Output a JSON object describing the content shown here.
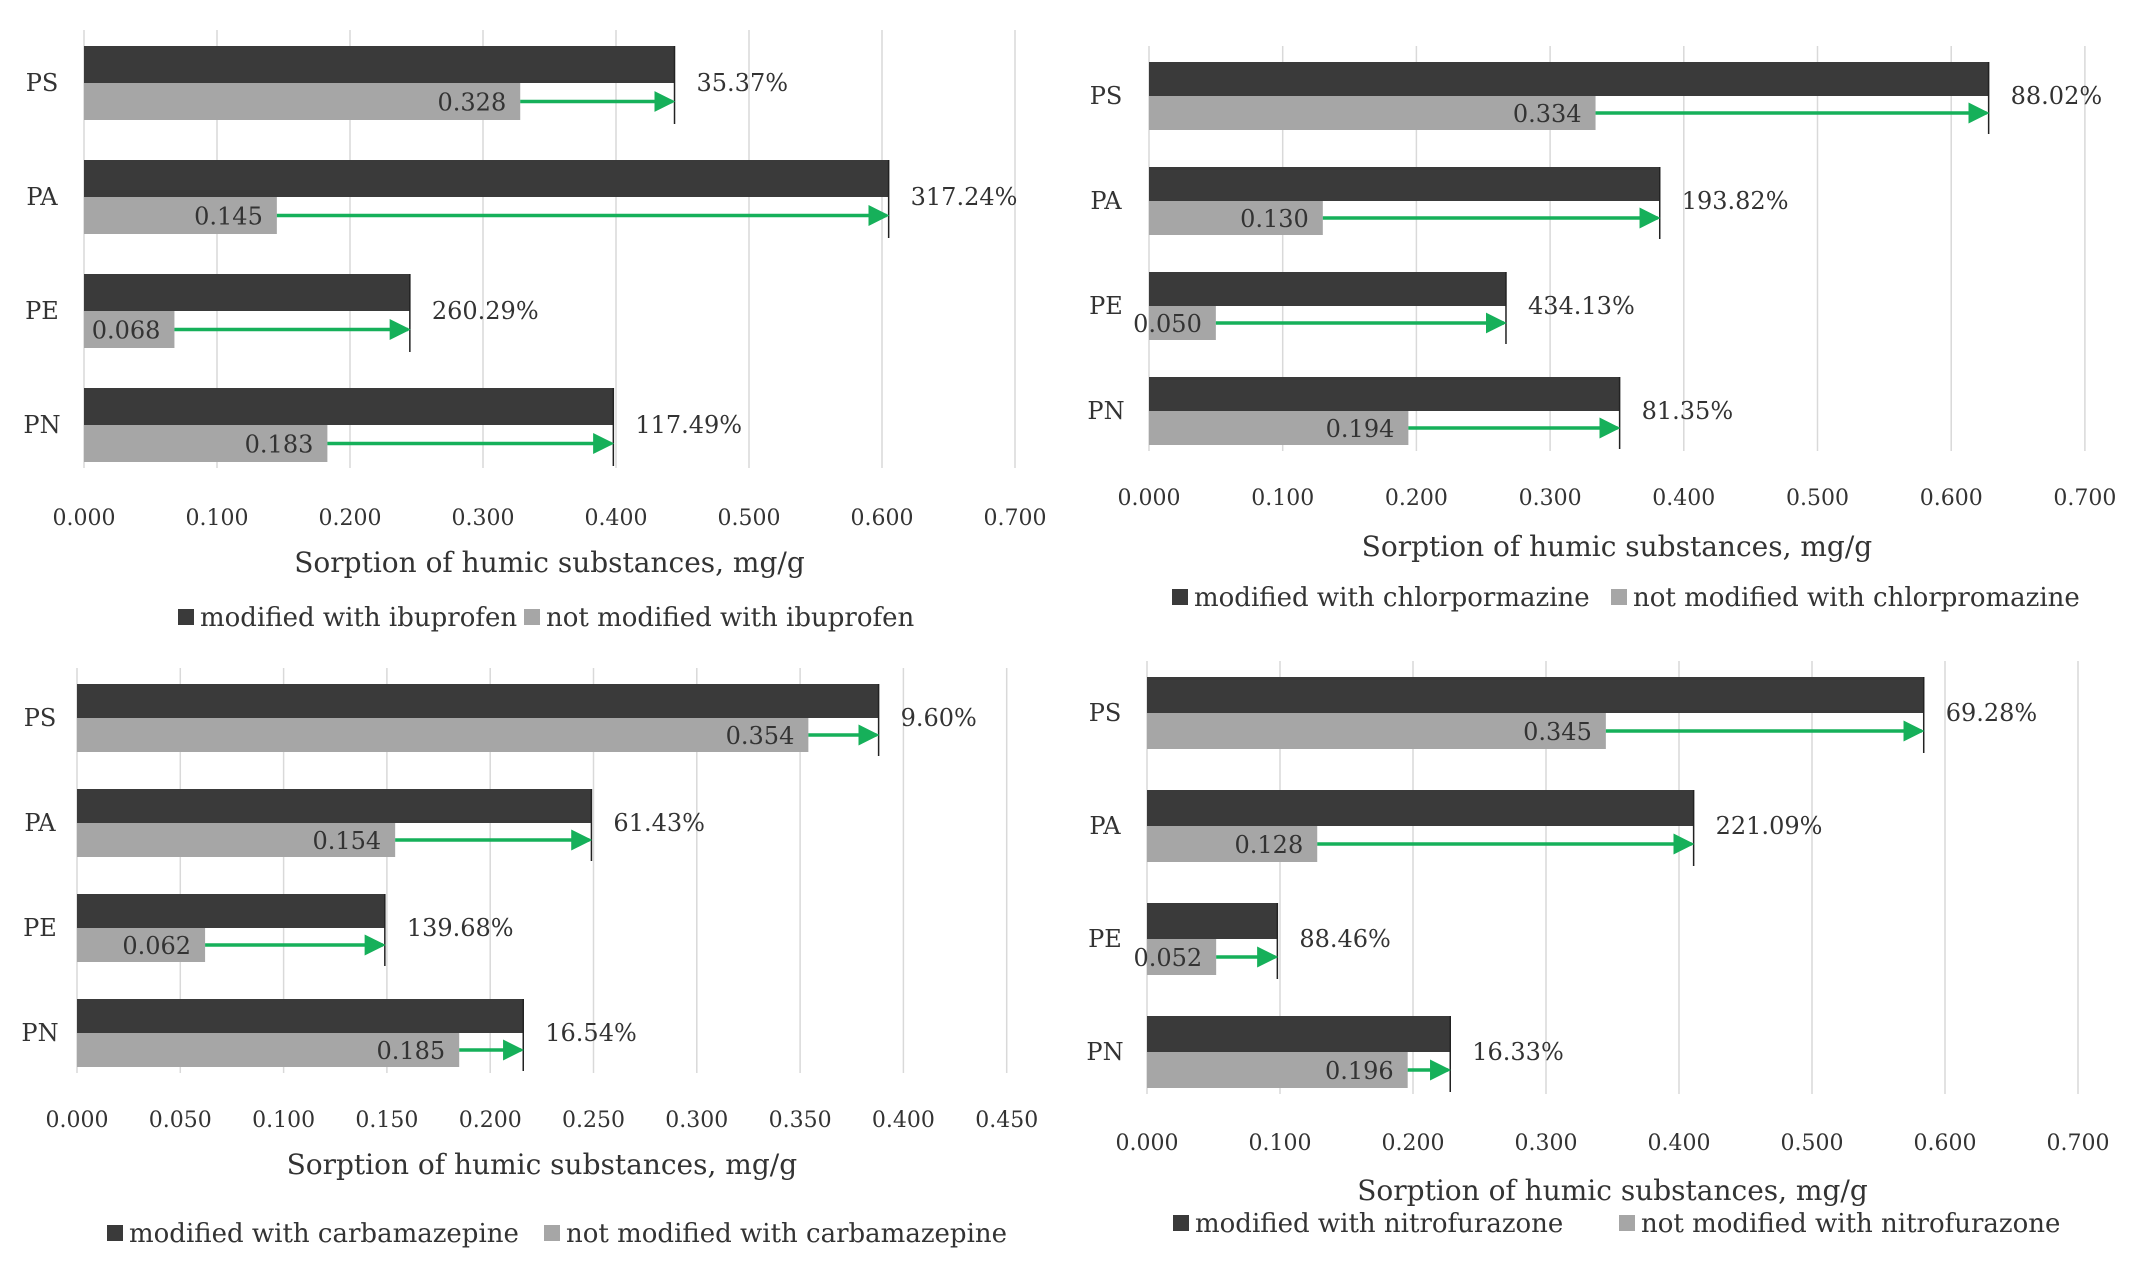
{
  "colors": {
    "modified": "#3a3a3a",
    "not_modified": "#a6a6a6",
    "arrow": "#16b05a"
  },
  "chart_data": [
    {
      "type": "bar",
      "orientation": "horizontal",
      "drug": "ibuprofen",
      "categories": [
        "PS",
        "PA",
        "PE",
        "PN"
      ],
      "series": [
        {
          "name": "modified with ibuprofen",
          "values": [
            0.444,
            0.605,
            0.245,
            0.398
          ]
        },
        {
          "name": "not modified with ibuprofen",
          "values": [
            0.328,
            0.145,
            0.068,
            0.183
          ]
        }
      ],
      "value_labels": [
        "0.328",
        "0.145",
        "0.068",
        "0.183"
      ],
      "percent_labels": [
        "35.37%",
        "317.24%",
        "260.29%",
        "117.49%"
      ],
      "xlabel": "Sorption of humic substances, mg/g",
      "xlim": [
        0,
        0.7
      ],
      "xticks": [
        "0.000",
        "0.100",
        "0.200",
        "0.300",
        "0.400",
        "0.500",
        "0.600",
        "0.700"
      ]
    },
    {
      "type": "bar",
      "orientation": "horizontal",
      "drug": "chlorpromazine",
      "categories": [
        "PS",
        "PA",
        "PE",
        "PN"
      ],
      "series": [
        {
          "name": "modified with chlorpormazine",
          "values": [
            0.628,
            0.382,
            0.267,
            0.352
          ]
        },
        {
          "name": "not modified with chlorpromazine",
          "values": [
            0.334,
            0.13,
            0.05,
            0.194
          ]
        }
      ],
      "value_labels": [
        "0.334",
        "0.130",
        "0.050",
        "0.194"
      ],
      "percent_labels": [
        "88.02%",
        "193.82%",
        "434.13%",
        "81.35%"
      ],
      "xlabel": "Sorption of humic substances, mg/g",
      "xlim": [
        0,
        0.7
      ],
      "xticks": [
        "0.000",
        "0.100",
        "0.200",
        "0.300",
        "0.400",
        "0.500",
        "0.600",
        "0.700"
      ]
    },
    {
      "type": "bar",
      "orientation": "horizontal",
      "drug": "carbamazepine",
      "categories": [
        "PS",
        "PA",
        "PE",
        "PN"
      ],
      "series": [
        {
          "name": "modified with carbamazepine",
          "values": [
            0.388,
            0.249,
            0.149,
            0.216
          ]
        },
        {
          "name": "not modified with carbamazepine",
          "values": [
            0.354,
            0.154,
            0.062,
            0.185
          ]
        }
      ],
      "value_labels": [
        "0.354",
        "0.154",
        "0.062",
        "0.185"
      ],
      "percent_labels": [
        "9.60%",
        "61.43%",
        "139.68%",
        "16.54%"
      ],
      "xlabel": "Sorption of humic substances, mg/g",
      "xlim": [
        0,
        0.45
      ],
      "xticks": [
        "0.000",
        "0.050",
        "0.100",
        "0.150",
        "0.200",
        "0.250",
        "0.300",
        "0.350",
        "0.400",
        "0.450"
      ]
    },
    {
      "type": "bar",
      "orientation": "horizontal",
      "drug": "nitrofurazone",
      "categories": [
        "PS",
        "PA",
        "PE",
        "PN"
      ],
      "series": [
        {
          "name": "modified with nitrofurazone",
          "values": [
            0.584,
            0.411,
            0.098,
            0.228
          ]
        },
        {
          "name": "not modified with nitrofurazone",
          "values": [
            0.345,
            0.128,
            0.052,
            0.196
          ]
        }
      ],
      "value_labels": [
        "0.345",
        "0.128",
        "0.052",
        "0.196"
      ],
      "percent_labels": [
        "69.28%",
        "221.09%",
        "88.46%",
        "16.33%"
      ],
      "xlabel": "Sorption of humic substances, mg/g",
      "xlim": [
        0,
        0.7
      ],
      "xticks": [
        "0.000",
        "0.100",
        "0.200",
        "0.300",
        "0.400",
        "0.500",
        "0.600",
        "0.700"
      ]
    }
  ]
}
